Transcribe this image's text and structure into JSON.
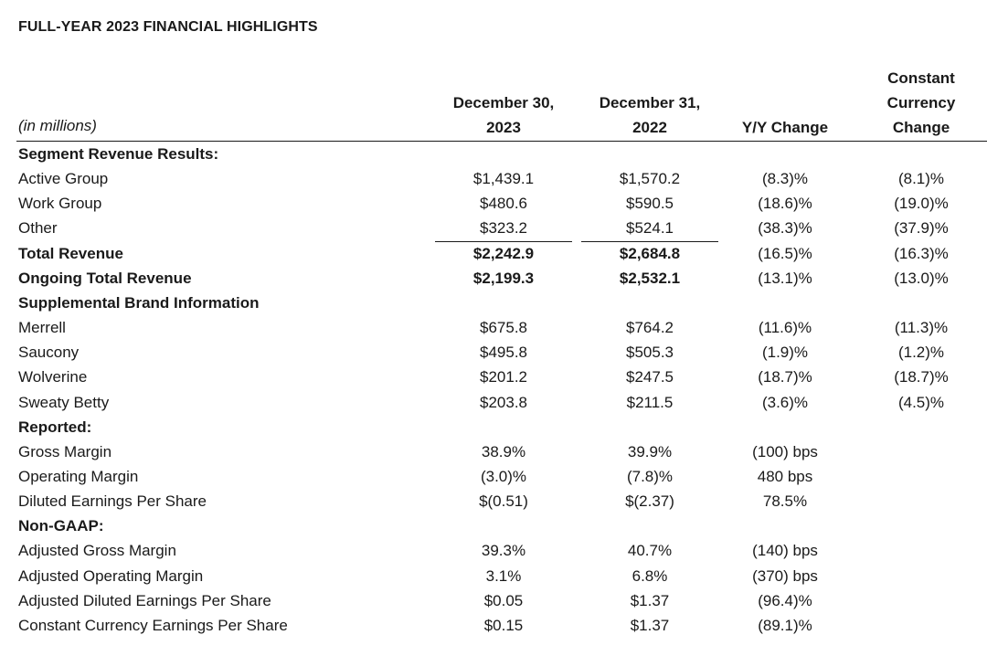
{
  "title": "FULL-YEAR 2023 FINANCIAL HIGHLIGHTS",
  "units_label": "(in millions)",
  "columns": {
    "c1": [
      "December 30,",
      "2023"
    ],
    "c2": [
      "December 31,",
      "2022"
    ],
    "c3": [
      "Y/Y Change"
    ],
    "c4": [
      "Constant",
      "Currency",
      "Change"
    ]
  },
  "rows": [
    {
      "label": "Segment Revenue Results:",
      "bold": true,
      "v": [
        "",
        "",
        "",
        ""
      ]
    },
    {
      "label": "Active Group",
      "bold": false,
      "v": [
        "$1,439.1",
        "$1,570.2",
        "(8.3)%",
        "(8.1)%"
      ]
    },
    {
      "label": "Work Group",
      "bold": false,
      "v": [
        "$480.6",
        "$590.5",
        "(18.6)%",
        "(19.0)%"
      ]
    },
    {
      "label": "Other",
      "bold": false,
      "v": [
        "$323.2",
        "$524.1",
        "(38.3)%",
        "(37.9)%"
      ]
    },
    {
      "label": "Total Revenue",
      "bold": true,
      "v": [
        "$2,242.9",
        "$2,684.8",
        "(16.5)%",
        "(16.3)%"
      ]
    },
    {
      "label": "Ongoing Total Revenue",
      "bold": true,
      "v": [
        "$2,199.3",
        "$2,532.1",
        "(13.1)%",
        "(13.0)%"
      ]
    },
    {
      "label": "Supplemental Brand Information",
      "bold": true,
      "v": [
        "",
        "",
        "",
        ""
      ]
    },
    {
      "label": "Merrell",
      "bold": false,
      "v": [
        "$675.8",
        "$764.2",
        "(11.6)%",
        "(11.3)%"
      ]
    },
    {
      "label": "Saucony",
      "bold": false,
      "v": [
        "$495.8",
        "$505.3",
        "(1.9)%",
        "(1.2)%"
      ]
    },
    {
      "label": "Wolverine",
      "bold": false,
      "v": [
        "$201.2",
        "$247.5",
        "(18.7)%",
        "(18.7)%"
      ]
    },
    {
      "label": "Sweaty Betty",
      "bold": false,
      "v": [
        "$203.8",
        "$211.5",
        "(3.6)%",
        "(4.5)%"
      ]
    },
    {
      "label": "Reported:",
      "bold": true,
      "v": [
        "",
        "",
        "",
        ""
      ]
    },
    {
      "label": "Gross Margin",
      "bold": false,
      "v": [
        "38.9%",
        "39.9%",
        "(100) bps",
        ""
      ]
    },
    {
      "label": "Operating Margin",
      "bold": false,
      "v": [
        "(3.0)%",
        "(7.8)%",
        "480 bps",
        ""
      ]
    },
    {
      "label": "Diluted Earnings Per Share",
      "bold": false,
      "v": [
        "$(0.51)",
        "$(2.37)",
        "78.5%",
        ""
      ]
    },
    {
      "label": "Non-GAAP:",
      "bold": true,
      "v": [
        "",
        "",
        "",
        ""
      ]
    },
    {
      "label": "Adjusted Gross Margin",
      "bold": false,
      "v": [
        "39.3%",
        "40.7%",
        "(140) bps",
        ""
      ]
    },
    {
      "label": "Adjusted Operating Margin",
      "bold": false,
      "v": [
        "3.1%",
        "6.8%",
        "(370) bps",
        ""
      ]
    },
    {
      "label": "Adjusted Diluted Earnings Per Share",
      "bold": false,
      "v": [
        "$0.05",
        "$1.37",
        "(96.4)%",
        ""
      ]
    },
    {
      "label": "Constant Currency Earnings Per Share",
      "bold": false,
      "v": [
        "$0.15",
        "$1.37",
        "(89.1)%",
        ""
      ]
    }
  ]
}
